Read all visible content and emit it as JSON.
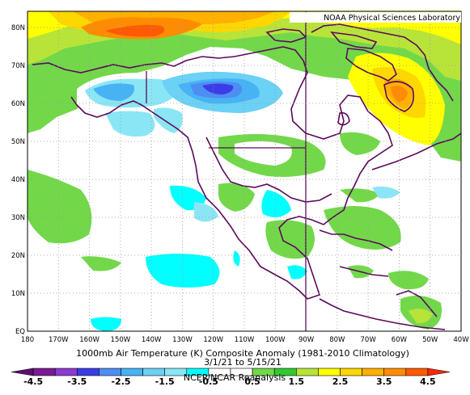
{
  "map": {
    "title": "1000mb Air Temperature (K) Composite Anomaly (1981-2010 Climatology)",
    "date_range": "3/1/21 to 5/15/21",
    "source": "NCEP/NCAR Reanalysis",
    "brand": "NOAA Physical Sciences Laboratory",
    "lon_labels": [
      "180",
      "170W",
      "160W",
      "150W",
      "140W",
      "130W",
      "120W",
      "110W",
      "100W",
      "90W",
      "80W",
      "70W",
      "60W",
      "50W",
      "40W"
    ],
    "lat_labels": [
      "EQ",
      "10N",
      "20N",
      "30N",
      "40N",
      "50N",
      "60N",
      "70N",
      "80N"
    ],
    "colorbar": {
      "labels": [
        "-4.5",
        "-3.5",
        "-2.5",
        "-1.5",
        "-0.5",
        "0.5",
        "1.5",
        "2.5",
        "3.5",
        "4.5"
      ],
      "colors": [
        "#5c0d6e",
        "#7a1a92",
        "#8d3ad0",
        "#3c3ce6",
        "#4d8ef2",
        "#47b3f5",
        "#6bd1f5",
        "#8ae6f5",
        "#00ffff",
        "#ffffff",
        "#ffffff",
        "#72d84a",
        "#32c832",
        "#b8e43a",
        "#ffff00",
        "#ffd700",
        "#ffb000",
        "#ff8c00",
        "#ff5a00",
        "#ff2800"
      ],
      "range": [
        -4.5,
        4.5
      ]
    }
  }
}
